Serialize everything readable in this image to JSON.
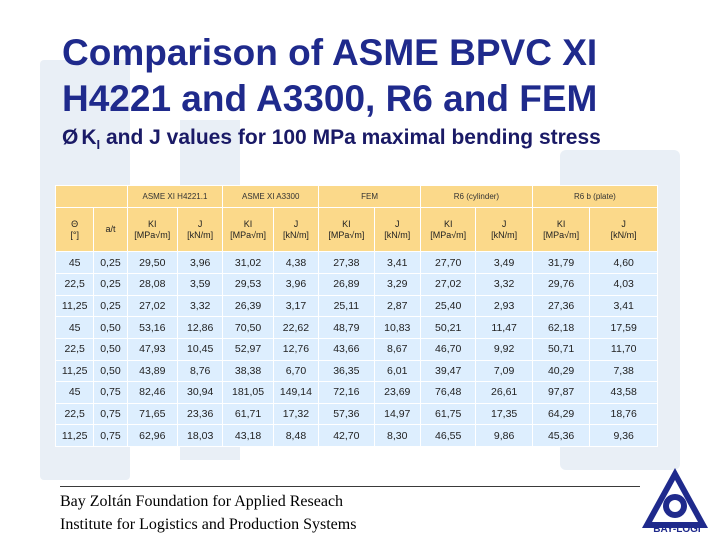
{
  "slide": {
    "title_line1": "Comparison of ASME BPVC XI",
    "title_line2": "H4221 and A3300, R6 and FEM",
    "bullet_symbol": "Ø",
    "subtitle_k": "K",
    "subtitle_sub": "I",
    "subtitle_rest": " and J values for 100 MPa maximal bending stress"
  },
  "table": {
    "groups": [
      "ASME XI H4221.1",
      "ASME XI A3300",
      "FEM",
      "R6 (cylinder)",
      "R6 b (plate)"
    ],
    "theta_label": "Θ",
    "theta_unit": "[°]",
    "at_label": "a/t",
    "k_label": "KI",
    "k_unit": "[MPa√m]",
    "j_label": "J",
    "j_unit": "[kN/m]",
    "rows": [
      [
        "45",
        "0,25",
        "29,50",
        "3,96",
        "31,02",
        "4,38",
        "27,38",
        "3,41",
        "27,70",
        "3,49",
        "31,79",
        "4,60"
      ],
      [
        "22,5",
        "0,25",
        "28,08",
        "3,59",
        "29,53",
        "3,96",
        "26,89",
        "3,29",
        "27,02",
        "3,32",
        "29,76",
        "4,03"
      ],
      [
        "11,25",
        "0,25",
        "27,02",
        "3,32",
        "26,39",
        "3,17",
        "25,11",
        "2,87",
        "25,40",
        "2,93",
        "27,36",
        "3,41"
      ],
      [
        "45",
        "0,50",
        "53,16",
        "12,86",
        "70,50",
        "22,62",
        "48,79",
        "10,83",
        "50,21",
        "11,47",
        "62,18",
        "17,59"
      ],
      [
        "22,5",
        "0,50",
        "47,93",
        "10,45",
        "52,97",
        "12,76",
        "43,66",
        "8,67",
        "46,70",
        "9,92",
        "50,71",
        "11,70"
      ],
      [
        "11,25",
        "0,50",
        "43,89",
        "8,76",
        "38,38",
        "6,70",
        "36,35",
        "6,01",
        "39,47",
        "7,09",
        "40,29",
        "7,38"
      ],
      [
        "45",
        "0,75",
        "82,46",
        "30,94",
        "181,05",
        "149,14",
        "72,16",
        "23,69",
        "76,48",
        "26,61",
        "97,87",
        "43,58"
      ],
      [
        "22,5",
        "0,75",
        "71,65",
        "23,36",
        "61,71",
        "17,32",
        "57,36",
        "14,97",
        "61,75",
        "17,35",
        "64,29",
        "18,76"
      ],
      [
        "11,25",
        "0,75",
        "62,96",
        "18,03",
        "43,18",
        "8,48",
        "42,70",
        "8,30",
        "46,55",
        "9,86",
        "45,36",
        "9,36"
      ]
    ]
  },
  "footer": {
    "line1": "Bay Zoltán Foundation for Applied Reseach",
    "line2": "Institute for Logistics and Production Systems"
  },
  "logo": {
    "text": "BAY-LOGI"
  },
  "colors": {
    "title": "#1f2a8c",
    "header_bg": "#fbd98a",
    "cell_bg": "#ddeefe",
    "watermark": "#d7e1ee"
  }
}
